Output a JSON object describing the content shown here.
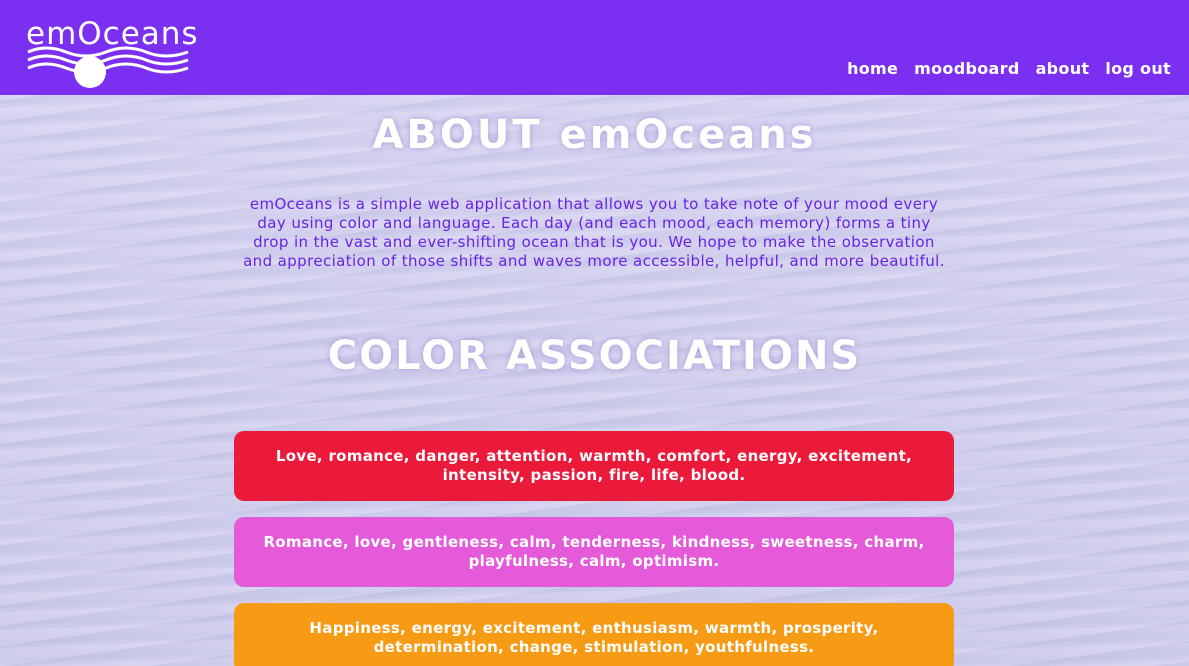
{
  "app": {
    "logo_text": "emOceans"
  },
  "nav": {
    "items": [
      {
        "label": "home"
      },
      {
        "label": "moodboard"
      },
      {
        "label": "about"
      },
      {
        "label": "log out"
      }
    ]
  },
  "about": {
    "title": "ABOUT emOceans",
    "description": "emOceans is a simple web application that allows you to take note of your mood every day using color and language. Each day (and each mood, each memory) forms a tiny drop in the vast and ever-shifting ocean that is you. We hope to make the observation and appreciation of those shifts and waves more accessible, helpful, and more beautiful."
  },
  "colors": {
    "title": "COLOR ASSOCIATIONS",
    "cards": [
      {
        "color": "#ec1a3a",
        "text": "Love, romance, danger, attention, warmth, comfort, energy, excitement, intensity, passion, fire, life, blood."
      },
      {
        "color": "#e45ad9",
        "text": "Romance, love, gentleness, calm, tenderness, kindness, sweetness, charm, playfulness, calm, optimism."
      },
      {
        "color": "#f79a14",
        "text": "Happiness, energy, excitement, enthusiasm, warmth, prosperity, determination, change, stimulation, youthfulness."
      }
    ]
  },
  "theme": {
    "navbar": "#7b2ff0",
    "accent_text": "#6a22e6"
  }
}
